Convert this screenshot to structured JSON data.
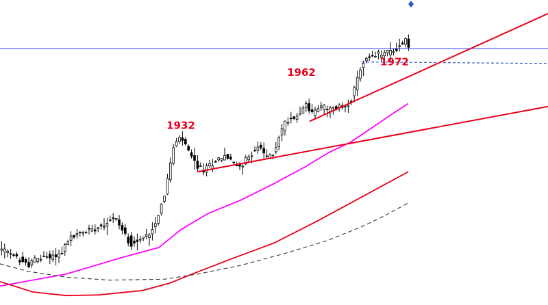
{
  "chart_data": {
    "type": "candlestick",
    "title": "",
    "xlabel": "",
    "ylabel": "",
    "grid": false,
    "legend": "none",
    "x_range": [
      0,
      100
    ],
    "y_range": [
      0,
      100
    ],
    "colors": {
      "candle": "#000000",
      "annotation": "#e8001c",
      "trendline": "#e8001c",
      "ma_fast": "#ff00ff",
      "ma_mid": "#e8001c",
      "ma_slow": "#333333",
      "horizontal_line": "#3333ff",
      "dashed_level": "#3355cc",
      "marker": "#3355cc"
    },
    "annotations": [
      {
        "text": "1932",
        "x": 33,
        "y": 58.0
      },
      {
        "text": "1962",
        "x": 55,
        "y": 75.8
      },
      {
        "text": "1972",
        "x": 72,
        "y": 79.4
      }
    ],
    "price_path": [
      [
        0,
        17.5
      ],
      [
        2,
        15.5
      ],
      [
        4,
        13.5
      ],
      [
        5,
        12.0
      ],
      [
        6,
        13.5
      ],
      [
        8,
        14.8
      ],
      [
        10,
        15.2
      ],
      [
        11,
        15.8
      ],
      [
        12,
        19.0
      ],
      [
        13,
        21.5
      ],
      [
        15,
        23.0
      ],
      [
        17,
        24.5
      ],
      [
        19,
        26.0
      ],
      [
        20,
        27.5
      ],
      [
        21,
        28.0
      ],
      [
        22,
        25.0
      ],
      [
        23,
        21.5
      ],
      [
        24,
        19.5
      ],
      [
        25,
        20.0
      ],
      [
        26,
        21.0
      ],
      [
        27,
        22.5
      ],
      [
        28,
        25.0
      ],
      [
        29,
        30.0
      ],
      [
        30,
        36.0
      ],
      [
        31,
        45.0
      ],
      [
        31.5,
        51.0
      ],
      [
        32,
        53.0
      ],
      [
        33,
        55.0
      ],
      [
        34,
        52.0
      ],
      [
        35,
        48.0
      ],
      [
        36,
        45.5
      ],
      [
        37,
        44.0
      ],
      [
        38,
        45.0
      ],
      [
        39,
        47.0
      ],
      [
        40,
        48.0
      ],
      [
        41,
        49.0
      ],
      [
        42,
        47.5
      ],
      [
        43,
        45.5
      ],
      [
        44,
        46.0
      ],
      [
        45,
        47.5
      ],
      [
        46,
        50.0
      ],
      [
        47,
        52.0
      ],
      [
        48,
        50.0
      ],
      [
        49,
        48.0
      ],
      [
        50,
        50.0
      ],
      [
        51,
        56.0
      ],
      [
        52,
        60.0
      ],
      [
        53,
        61.5
      ],
      [
        54,
        62.0
      ],
      [
        55,
        65.0
      ],
      [
        56,
        66.0
      ],
      [
        57,
        63.0
      ],
      [
        58,
        65.0
      ],
      [
        59,
        65.5
      ],
      [
        60,
        64.0
      ],
      [
        61,
        65.0
      ],
      [
        62,
        65.5
      ],
      [
        63,
        66.0
      ],
      [
        64,
        67.5
      ],
      [
        65,
        73.0
      ],
      [
        66,
        80.0
      ],
      [
        67,
        81.5
      ],
      [
        68,
        82.0
      ],
      [
        69,
        83.0
      ],
      [
        70,
        83.5
      ],
      [
        71,
        84.0
      ],
      [
        72,
        84.5
      ],
      [
        73,
        86.0
      ],
      [
        74,
        88.0
      ],
      [
        74.5,
        86.0
      ],
      [
        75,
        84.0
      ]
    ],
    "moving_averages": [
      {
        "key": "ma_fast",
        "dash": false,
        "points": [
          [
            0,
            5.0
          ],
          [
            12,
            9.0
          ],
          [
            22,
            14.5
          ],
          [
            29,
            18.0
          ],
          [
            30,
            19.5
          ],
          [
            33,
            24.0
          ],
          [
            38,
            29.5
          ],
          [
            44,
            34.0
          ],
          [
            50,
            39.5
          ],
          [
            56,
            45.5
          ],
          [
            60,
            50.0
          ],
          [
            64,
            53.5
          ],
          [
            68,
            58.5
          ],
          [
            72,
            63.5
          ],
          [
            74.5,
            66.5
          ]
        ]
      },
      {
        "key": "ma_mid",
        "dash": false,
        "points": [
          [
            0,
            6.5
          ],
          [
            6,
            3.0
          ],
          [
            12,
            1.8
          ],
          [
            18,
            2.0
          ],
          [
            26,
            3.5
          ],
          [
            31,
            6.0
          ],
          [
            35,
            9.0
          ],
          [
            42,
            14.0
          ],
          [
            50,
            19.5
          ],
          [
            58,
            27.0
          ],
          [
            64,
            33.0
          ],
          [
            70,
            39.0
          ],
          [
            74.5,
            43.5
          ]
        ]
      },
      {
        "key": "ma_slow",
        "dash": true,
        "points": [
          [
            0,
            12.5
          ],
          [
            5,
            10.0
          ],
          [
            12,
            8.0
          ],
          [
            20,
            7.0
          ],
          [
            30,
            7.3
          ],
          [
            36,
            9.0
          ],
          [
            44,
            12.0
          ],
          [
            52,
            16.0
          ],
          [
            60,
            20.5
          ],
          [
            66,
            25.0
          ],
          [
            70,
            28.5
          ],
          [
            74.5,
            33.0
          ]
        ]
      }
    ],
    "trendlines": [
      {
        "from": [
          36,
          43.5
        ],
        "to": [
          100,
          65.5
        ]
      },
      {
        "from": [
          56.5,
          60.5
        ],
        "to": [
          100,
          96.8
        ]
      }
    ],
    "horizontal_line": 85.0,
    "dashed_level": {
      "from": 66,
      "to": 100,
      "start_y": 80.5,
      "end_y": 80.0
    },
    "markers": [
      {
        "shape": "diamond",
        "x": 75,
        "y": 100
      }
    ]
  }
}
